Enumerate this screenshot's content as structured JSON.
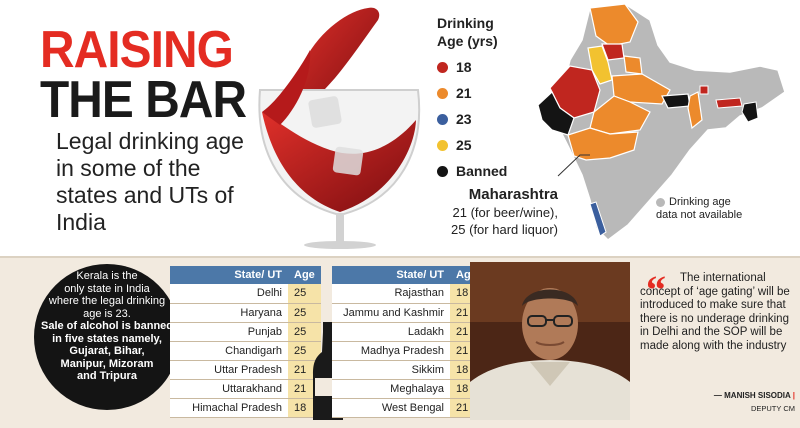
{
  "header": {
    "title_line1": "RAISING",
    "title_line2": "THE BAR",
    "subtitle": "Legal drinking age in some of the states and UTs of India"
  },
  "legend": {
    "title_line1": "Drinking",
    "title_line2": "Age (yrs)",
    "items": [
      {
        "label": "18",
        "color": "#c0261f"
      },
      {
        "label": "21",
        "color": "#ec8a2c"
      },
      {
        "label": "23",
        "color": "#3b5f9e"
      },
      {
        "label": "25",
        "color": "#f2c230"
      },
      {
        "label": "Banned",
        "color": "#141414"
      }
    ]
  },
  "map": {
    "callout_name": "Maharashtra",
    "callout_line1": "21 (for beer/wine),",
    "callout_line2": "25 (for hard liquor)",
    "na_line1": "Drinking age",
    "na_line2": "data not available",
    "na_color": "#b9b9b9"
  },
  "circle": {
    "line1": "Kerala is the",
    "line2": "only state in India",
    "line3": "where the legal drinking",
    "line4": "age is 23.",
    "line5": "Sale of alcohol is banned",
    "line6": "in five states namely,",
    "line7": "Gujarat, Bihar,",
    "line8": "Manipur, Mizoram",
    "line9": "and Tripura"
  },
  "table_left": {
    "col_state": "State/ UT",
    "col_age": "Age",
    "rows": [
      {
        "state": "Delhi",
        "age": "25"
      },
      {
        "state": "Haryana",
        "age": "25"
      },
      {
        "state": "Punjab",
        "age": "25"
      },
      {
        "state": "Chandigarh",
        "age": "25"
      },
      {
        "state": "Uttar Pradesh",
        "age": "21"
      },
      {
        "state": "Uttarakhand",
        "age": "21"
      },
      {
        "state": "Himachal Pradesh",
        "age": "18"
      }
    ]
  },
  "table_right": {
    "col_state": "State/ UT",
    "col_age": "Age",
    "rows": [
      {
        "state": "Rajasthan",
        "age": "18"
      },
      {
        "state": "Jammu and Kashmir",
        "age": "21"
      },
      {
        "state": "Ladakh",
        "age": "21"
      },
      {
        "state": "Madhya Pradesh",
        "age": "21"
      },
      {
        "state": "Sikkim",
        "age": "18"
      },
      {
        "state": "Meghalaya",
        "age": "18"
      },
      {
        "state": "West Bengal",
        "age": "21"
      }
    ]
  },
  "quote": {
    "mark": "“",
    "text": "The international concept of ‘age gating’ will be introduced to make sure that there is no underage drinking in Delhi and the SOP will be made along with the industry",
    "attribution_prefix": "— MANISH SISODIA",
    "attribution_bar": "|",
    "role": "DEPUTY CM"
  }
}
